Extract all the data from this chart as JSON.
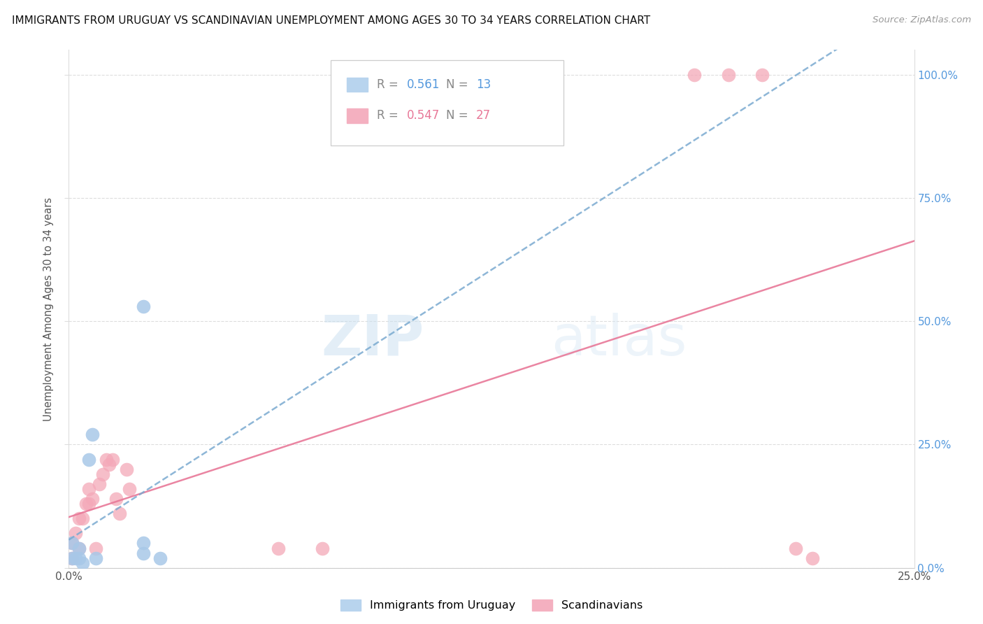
{
  "title": "IMMIGRANTS FROM URUGUAY VS SCANDINAVIAN UNEMPLOYMENT AMONG AGES 30 TO 34 YEARS CORRELATION CHART",
  "source": "Source: ZipAtlas.com",
  "ylabel": "Unemployment Among Ages 30 to 34 years",
  "watermark_zip": "ZIP",
  "watermark_atlas": "atlas",
  "blue_color": "#a8c8e8",
  "blue_line_color": "#7aaad0",
  "pink_color": "#f4a8b8",
  "pink_line_color": "#e87898",
  "blue_r": "0.561",
  "blue_n": "13",
  "pink_r": "0.547",
  "pink_n": "27",
  "uruguay_x": [
    0.001,
    0.001,
    0.002,
    0.003,
    0.003,
    0.004,
    0.006,
    0.007,
    0.008,
    0.022,
    0.022,
    0.022,
    0.027
  ],
  "uruguay_y": [
    0.02,
    0.05,
    0.02,
    0.02,
    0.04,
    0.01,
    0.22,
    0.27,
    0.02,
    0.53,
    0.03,
    0.05,
    0.02
  ],
  "scandinavian_x": [
    0.001,
    0.001,
    0.002,
    0.003,
    0.003,
    0.004,
    0.005,
    0.006,
    0.006,
    0.007,
    0.008,
    0.009,
    0.01,
    0.011,
    0.012,
    0.013,
    0.014,
    0.015,
    0.017,
    0.018,
    0.062,
    0.075,
    0.185,
    0.195,
    0.205,
    0.215,
    0.22
  ],
  "scandinavian_y": [
    0.02,
    0.05,
    0.07,
    0.1,
    0.04,
    0.1,
    0.13,
    0.13,
    0.16,
    0.14,
    0.04,
    0.17,
    0.19,
    0.22,
    0.21,
    0.22,
    0.14,
    0.11,
    0.2,
    0.16,
    0.04,
    0.04,
    1.0,
    1.0,
    1.0,
    0.04,
    0.02
  ],
  "xlim": [
    0.0,
    0.25
  ],
  "ylim": [
    0.0,
    1.05
  ],
  "legend_label_blue": "Immigrants from Uruguay",
  "legend_label_pink": "Scandinavians",
  "right_yticks": [
    0.0,
    0.25,
    0.5,
    0.75,
    1.0
  ],
  "right_yticklabels": [
    "0.0%",
    "25.0%",
    "50.0%",
    "75.0%",
    "100.0%"
  ]
}
